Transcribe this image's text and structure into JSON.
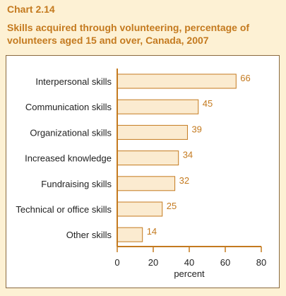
{
  "chart_number": "Chart 2.14",
  "title": "Skills acquired through volunteering, percentage of volunteers aged 15 and over, Canada, 2007",
  "colors": {
    "bar_fill": "#fbebd0",
    "bar_stroke": "#c47a1f",
    "axis": "#c47a1f",
    "value_text": "#c47a1f",
    "background": "#fdf1d4"
  },
  "chart_data": {
    "type": "bar",
    "orientation": "horizontal",
    "categories": [
      "Interpersonal skills",
      "Communication skills",
      "Organizational skills",
      "Increased knowledge",
      "Fundraising skills",
      "Technical or office skills",
      "Other skills"
    ],
    "values": [
      66,
      45,
      39,
      34,
      32,
      25,
      14
    ],
    "xlabel": "percent",
    "ylabel": "",
    "xlim": [
      0,
      80
    ],
    "xticks": [
      0,
      20,
      40,
      60,
      80
    ],
    "grid": false,
    "legend": "none"
  }
}
